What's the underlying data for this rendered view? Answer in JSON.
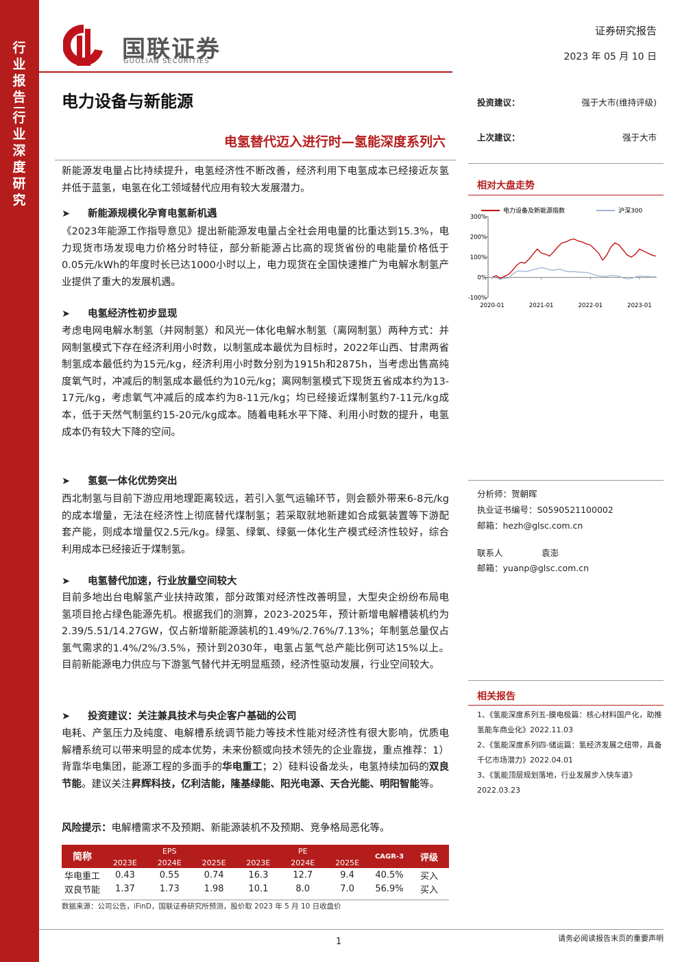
{
  "header": {
    "logo_cn": "国联证券",
    "logo_en": "GUOLIAN SECURITIES",
    "report_type": "证券研究报告",
    "date": "2023 年 05 月 10 日"
  },
  "sidebar": [
    "行业报告",
    "行业深度研究"
  ],
  "industry": "电力设备与新能源",
  "title": "电氢替代迈入进行时—氢能深度系列六",
  "summary": "新能源发电量占比持续提升，电氢经济性不断改善，经济利用下电氢成本已经接近灰氢并低于蓝氢，电氢在化工领域替代应用有较大发展潜力。",
  "sections": [
    {
      "heading": "新能源规模化孕育电氢新机遇",
      "segments": [
        {
          "text": "《2023年能源工作指导意见》提出新能源发电量占全社会用电量的比重达到15.3%，电力现货市场发现电力价格分时特征，部分新能源占比高的现货省份的电能量价格低于0.05元/kWh的年度时长已达1000小时以上，电力现货在全国快速推广为电解水制氢产业提供了重大的发展机遇。"
        }
      ]
    },
    {
      "heading": "电氢经济性初步显现",
      "segments": [
        {
          "text": "考虑电网电解水制氢（并网制氢）和风光一体化电解水制氢（离网制氢）两种方式：并网制氢模式下存在经济利用小时数，以制氢成本最优为目标时，2022年山西、甘肃两省制氢成本最低约为15元/kg，经济利用小时数分别为1915h和2875h，当考虑出售高纯度氧气时，冲减后的制氢成本最低约为10元/kg；离网制氢模式下现货五省成本约为13-17元/kg，考虑氧气冲减后的成本约为8-11元/kg；均已经接近煤制氢约7-11元/kg成本，低于天然气制氢约15-20元/kg成本。随着电耗水平下降、利用小时数的提升，电氢成本仍有较大下降的空间。"
        }
      ]
    },
    {
      "heading": "氢氨一体化优势突出",
      "segments": [
        {
          "text": "西北制氢与目前下游应用地理距离较远，若引入氢气运输环节，则会额外带来6-8元/kg的成本增量，无法在经济性上彻底替代煤制氢；若采取就地新建如合成氨装置等下游配套产能，则成本增量仅2.5元/kg。绿氢、绿氧、绿氨一体化生产模式经济性较好，综合利用成本已经接近于煤制氢。"
        }
      ]
    },
    {
      "heading": "电氢替代加速，行业放量空间较大",
      "segments": [
        {
          "text": "目前多地出台电解氢产业扶持政策，部分政策对经济性改善明显，大型央企纷纷布局电氢项目抢占绿色能源先机。根据我们的测算，2023-2025年，预计新增电解槽装机约为2.39/5.51/14.27GW，仅占新增新能源装机的1.49%/2.76%/7.13%；年制氢总量仅占氢气需求的1.4%/2%/3.5%，预计到2030年，电氢占氢气总产能比例可达15%以上。目前新能源电力供应与下游氢气替代并无明显瓶颈，经济性驱动发展，行业空间较大。"
        }
      ]
    },
    {
      "heading": "投资建议：关注兼具技术与央企客户基础的公司",
      "segments": [
        {
          "text": "电耗、产氢压力及纯度、电解槽系统调节能力等技术性能对经济性有很大影响，优质电解槽系统可以带来明显的成本优势，未来份额或向技术领先的企业靠拢，重点推荐：1）背靠华电集团，能源工程的多面手的"
        },
        {
          "text": "华电重工",
          "bold": true
        },
        {
          "text": "；2）硅料设备龙头，电氢持续加码的"
        },
        {
          "text": "双良节能",
          "bold": true
        },
        {
          "text": "。建议关注"
        },
        {
          "text": "昇辉科技，亿利洁能，隆基绿能、阳光电源、天合光能、明阳智能",
          "bold": true
        },
        {
          "text": "等。"
        }
      ]
    }
  ],
  "risk": {
    "label": "风险提示：",
    "text": "电解槽需求不及预期、新能源装机不及预期、竞争格局恶化等。"
  },
  "table": {
    "name_header": "简称",
    "eps_header": "EPS",
    "pe_header": "PE",
    "cagr_header": "CAGR-3",
    "rating_header": "评级",
    "years": [
      "2023E",
      "2024E",
      "2025E"
    ],
    "rows": [
      [
        "华电重工",
        "0.43",
        "0.55",
        "0.74",
        "16.3",
        "12.7",
        "9.4",
        "40.5%",
        "买入"
      ],
      [
        "双良节能",
        "1.37",
        "1.73",
        "1.98",
        "10.1",
        "8.0",
        "7.0",
        "56.9%",
        "买入"
      ]
    ]
  },
  "source": "数据来源：公司公告，iFinD，国联证券研究所预测，股价取 2023 年 5 月 10 日收盘价",
  "rating": {
    "label": "投资建议：",
    "value": "强于大市(维持评级)",
    "prev_label": "上次建议：",
    "prev_value": "强于大市"
  },
  "chart_heading": "相对大盘走势",
  "chart_data": {
    "type": "line",
    "x": [
      "2020-01",
      "2020-02",
      "2020-03",
      "2020-04",
      "2020-05",
      "2020-06",
      "2020-07",
      "2020-08",
      "2020-09",
      "2020-10",
      "2020-11",
      "2020-12",
      "2021-01",
      "2021-02",
      "2021-03",
      "2021-04",
      "2021-05",
      "2021-06",
      "2021-07",
      "2021-08",
      "2021-09",
      "2021-10",
      "2021-11",
      "2021-12",
      "2022-01",
      "2022-02",
      "2022-03",
      "2022-04",
      "2022-05",
      "2022-06",
      "2022-07",
      "2022-08",
      "2022-09",
      "2022-10",
      "2022-11",
      "2022-12",
      "2023-01",
      "2023-02",
      "2023-03",
      "2023-04",
      "2023-05"
    ],
    "xticks": [
      "2020-01",
      "2021-01",
      "2022-01",
      "2023-01"
    ],
    "series": [
      {
        "name": "电力设备及新能源指数",
        "color": "#c00000",
        "values": [
          0,
          8,
          -5,
          5,
          15,
          35,
          60,
          75,
          70,
          90,
          115,
          140,
          120,
          115,
          105,
          125,
          150,
          170,
          175,
          185,
          190,
          180,
          175,
          165,
          160,
          140,
          120,
          85,
          110,
          150,
          170,
          160,
          135,
          110,
          100,
          115,
          140,
          130,
          120,
          110,
          105
        ]
      },
      {
        "name": "沪深300",
        "color": "#9fb3d6",
        "values": [
          0,
          -3,
          -10,
          -5,
          -3,
          15,
          30,
          32,
          28,
          32,
          38,
          42,
          48,
          45,
          38,
          35,
          40,
          38,
          30,
          28,
          28,
          26,
          25,
          24,
          20,
          12,
          8,
          5,
          4,
          10,
          8,
          5,
          -2,
          -8,
          -5,
          2,
          6,
          5,
          4,
          2,
          3
        ]
      }
    ],
    "ylim": [
      -100,
      300
    ],
    "yticks": [
      {
        "value": -100,
        "label": "-100%"
      },
      {
        "value": 0,
        "label": "0%"
      },
      {
        "value": 100,
        "label": "100%"
      },
      {
        "value": 200,
        "label": "200%"
      },
      {
        "value": 300,
        "label": "300%"
      }
    ],
    "grid": false
  },
  "analysts": {
    "analyst": "分析师：贺朝晖",
    "cert": "执业证书编号：S0590521100002",
    "email": "邮箱：hezh@glsc.com.cn",
    "contact_label": "联系人",
    "contact_name": "袁澎",
    "contact_email": "邮箱：yuanp@glsc.com.cn"
  },
  "related": {
    "heading": "相关报告",
    "items": [
      {
        "text": "1、《氢能深度系列五-膜电极篇：核心材料国产化，助推氢能车商业化》",
        "date": "2022.11.03"
      },
      {
        "text": "2、《氢能深度系列四-储运篇：氢经济发展之纽带，具备千亿市场潜力》",
        "date": "2022.04.01"
      },
      {
        "text": "3、《氢能顶层规划落地，行业发展步入快车道》",
        "date": "2022.03.23"
      }
    ]
  },
  "footer": {
    "page": "1",
    "notice": "请务必阅读报告末页的重要声明"
  }
}
